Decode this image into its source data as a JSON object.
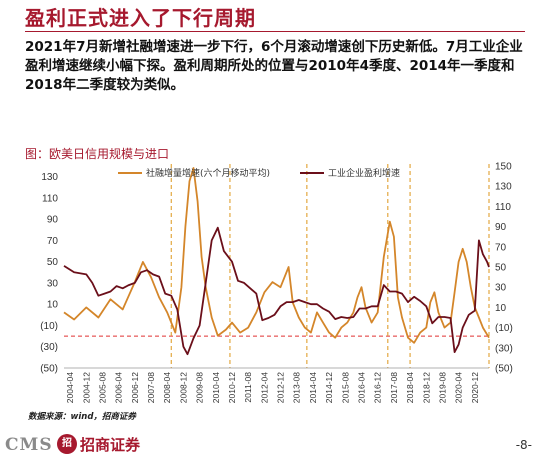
{
  "header": {
    "title": "盈利正式进入了下行周期"
  },
  "body": {
    "paragraph": "2021年7月新增社融增速进一步下行，6个月滚动增速创下历史新低。7月工业企业盈利增速继续小幅下探。盈利周期所处的位置与2010年4季度、2014年一季度和2018年二季度较为类似。"
  },
  "figure": {
    "title": "图：欧美日信用规模与进口",
    "source": "数据来源：wind，招商证券"
  },
  "footer": {
    "logo_text": "CMS",
    "logo_mark": "招",
    "logo_cn": "招商证券",
    "page_number": "-8-"
  },
  "colors": {
    "brand": "#A6192E",
    "series_social_financing": "#D4862A",
    "series_industrial_profit": "#6B0F1A",
    "reference_line": "#E03030",
    "cycle_marker": "#E0A030"
  },
  "chart_data": {
    "type": "line",
    "title": "图：欧美日信用规模与进口",
    "x_labels": [
      "2004-04",
      "2004-12",
      "2005-08",
      "2006-04",
      "2006-12",
      "2007-08",
      "2008-04",
      "2008-12",
      "2009-08",
      "2010-04",
      "2010-12",
      "2011-08",
      "2012-04",
      "2012-12",
      "2013-08",
      "2014-04",
      "2014-12",
      "2015-08",
      "2016-04",
      "2016-12",
      "2017-08",
      "2018-04",
      "2018-12",
      "2019-08",
      "2020-04",
      "2020-12"
    ],
    "x_range": [
      "2004-01",
      "2021-07"
    ],
    "y_left": {
      "ticks": [
        "130",
        "110",
        "90",
        "70",
        "50",
        "30",
        "10",
        "(10)",
        "(30)",
        "(50)"
      ],
      "values": [
        130,
        110,
        90,
        70,
        50,
        30,
        10,
        -10,
        -30,
        -50
      ],
      "range": [
        -50,
        140
      ]
    },
    "y_right": {
      "ticks": [
        "150",
        "130",
        "110",
        "90",
        "70",
        "50",
        "30",
        "10",
        "(10)",
        "(30)",
        "(50)"
      ],
      "values": [
        150,
        130,
        110,
        90,
        70,
        50,
        30,
        10,
        -10,
        -30,
        -50
      ],
      "range": [
        -50,
        150
      ]
    },
    "reference_line_value": -20,
    "cycle_markers": [
      "2008-06",
      "2010-11",
      "2014-01",
      "2017-05",
      "2018-04",
      "2021-07"
    ],
    "legend_position": "top",
    "series": [
      {
        "name": "社融增量增速(六个月移动平均)",
        "axis": "right",
        "points": [
          [
            "2004-01",
            5
          ],
          [
            "2004-06",
            -2
          ],
          [
            "2004-12",
            10
          ],
          [
            "2005-06",
            0
          ],
          [
            "2005-12",
            18
          ],
          [
            "2006-06",
            8
          ],
          [
            "2006-12",
            35
          ],
          [
            "2007-04",
            55
          ],
          [
            "2007-08",
            40
          ],
          [
            "2007-12",
            20
          ],
          [
            "2008-04",
            5
          ],
          [
            "2008-08",
            -15
          ],
          [
            "2008-11",
            30
          ],
          [
            "2009-01",
            90
          ],
          [
            "2009-03",
            135
          ],
          [
            "2009-05",
            148
          ],
          [
            "2009-07",
            115
          ],
          [
            "2009-09",
            60
          ],
          [
            "2009-11",
            30
          ],
          [
            "2010-02",
            0
          ],
          [
            "2010-05",
            -18
          ],
          [
            "2010-09",
            -12
          ],
          [
            "2010-12",
            -5
          ],
          [
            "2011-04",
            -15
          ],
          [
            "2011-08",
            -10
          ],
          [
            "2011-12",
            5
          ],
          [
            "2012-04",
            25
          ],
          [
            "2012-08",
            35
          ],
          [
            "2012-12",
            30
          ],
          [
            "2013-04",
            50
          ],
          [
            "2013-06",
            15
          ],
          [
            "2013-09",
            0
          ],
          [
            "2013-12",
            -10
          ],
          [
            "2014-03",
            -15
          ],
          [
            "2014-06",
            5
          ],
          [
            "2014-09",
            -5
          ],
          [
            "2014-12",
            -15
          ],
          [
            "2015-03",
            -20
          ],
          [
            "2015-06",
            -10
          ],
          [
            "2015-09",
            -5
          ],
          [
            "2015-12",
            5
          ],
          [
            "2016-02",
            20
          ],
          [
            "2016-04",
            30
          ],
          [
            "2016-06",
            10
          ],
          [
            "2016-09",
            -5
          ],
          [
            "2016-12",
            5
          ],
          [
            "2017-03",
            60
          ],
          [
            "2017-06",
            95
          ],
          [
            "2017-08",
            80
          ],
          [
            "2017-10",
            20
          ],
          [
            "2017-12",
            0
          ],
          [
            "2018-03",
            -20
          ],
          [
            "2018-06",
            -25
          ],
          [
            "2018-09",
            -15
          ],
          [
            "2018-12",
            -10
          ],
          [
            "2019-02",
            15
          ],
          [
            "2019-04",
            25
          ],
          [
            "2019-06",
            5
          ],
          [
            "2019-09",
            -10
          ],
          [
            "2019-12",
            -5
          ],
          [
            "2020-02",
            25
          ],
          [
            "2020-04",
            55
          ],
          [
            "2020-06",
            68
          ],
          [
            "2020-08",
            55
          ],
          [
            "2020-10",
            30
          ],
          [
            "2020-12",
            10
          ],
          [
            "2021-02",
            0
          ],
          [
            "2021-04",
            -10
          ],
          [
            "2021-07",
            -20
          ]
        ]
      },
      {
        "name": "工业企业盈利增速",
        "axis": "left",
        "points": [
          [
            "2004-01",
            46
          ],
          [
            "2004-06",
            40
          ],
          [
            "2004-12",
            38
          ],
          [
            "2005-03",
            30
          ],
          [
            "2005-06",
            18
          ],
          [
            "2005-09",
            20
          ],
          [
            "2005-12",
            22
          ],
          [
            "2006-03",
            27
          ],
          [
            "2006-06",
            25
          ],
          [
            "2006-09",
            28
          ],
          [
            "2006-12",
            30
          ],
          [
            "2007-03",
            40
          ],
          [
            "2007-06",
            42
          ],
          [
            "2007-09",
            38
          ],
          [
            "2007-12",
            36
          ],
          [
            "2008-03",
            20
          ],
          [
            "2008-06",
            18
          ],
          [
            "2008-09",
            5
          ],
          [
            "2008-12",
            -30
          ],
          [
            "2009-02",
            -37
          ],
          [
            "2009-05",
            -22
          ],
          [
            "2009-08",
            -10
          ],
          [
            "2009-11",
            30
          ],
          [
            "2010-02",
            70
          ],
          [
            "2010-05",
            82
          ],
          [
            "2010-08",
            60
          ],
          [
            "2010-12",
            50
          ],
          [
            "2011-03",
            32
          ],
          [
            "2011-06",
            30
          ],
          [
            "2011-09",
            25
          ],
          [
            "2011-12",
            20
          ],
          [
            "2012-03",
            -5
          ],
          [
            "2012-06",
            -3
          ],
          [
            "2012-09",
            0
          ],
          [
            "2012-12",
            8
          ],
          [
            "2013-03",
            12
          ],
          [
            "2013-06",
            12
          ],
          [
            "2013-09",
            14
          ],
          [
            "2013-12",
            12
          ],
          [
            "2014-03",
            10
          ],
          [
            "2014-06",
            10
          ],
          [
            "2014-09",
            6
          ],
          [
            "2014-12",
            3
          ],
          [
            "2015-03",
            -4
          ],
          [
            "2015-06",
            -2
          ],
          [
            "2015-09",
            -3
          ],
          [
            "2015-12",
            -2
          ],
          [
            "2016-03",
            6
          ],
          [
            "2016-06",
            6
          ],
          [
            "2016-09",
            8
          ],
          [
            "2016-12",
            8
          ],
          [
            "2017-03",
            28
          ],
          [
            "2017-06",
            22
          ],
          [
            "2017-09",
            22
          ],
          [
            "2017-12",
            20
          ],
          [
            "2018-03",
            12
          ],
          [
            "2018-06",
            17
          ],
          [
            "2018-09",
            13
          ],
          [
            "2018-12",
            8
          ],
          [
            "2019-03",
            -8
          ],
          [
            "2019-06",
            -2
          ],
          [
            "2019-09",
            -2
          ],
          [
            "2019-12",
            -3
          ],
          [
            "2020-02",
            -35
          ],
          [
            "2020-04",
            -28
          ],
          [
            "2020-06",
            -12
          ],
          [
            "2020-09",
            0
          ],
          [
            "2020-12",
            4
          ],
          [
            "2021-02",
            70
          ],
          [
            "2021-04",
            57
          ],
          [
            "2021-06",
            50
          ],
          [
            "2021-07",
            45
          ]
        ]
      }
    ]
  }
}
